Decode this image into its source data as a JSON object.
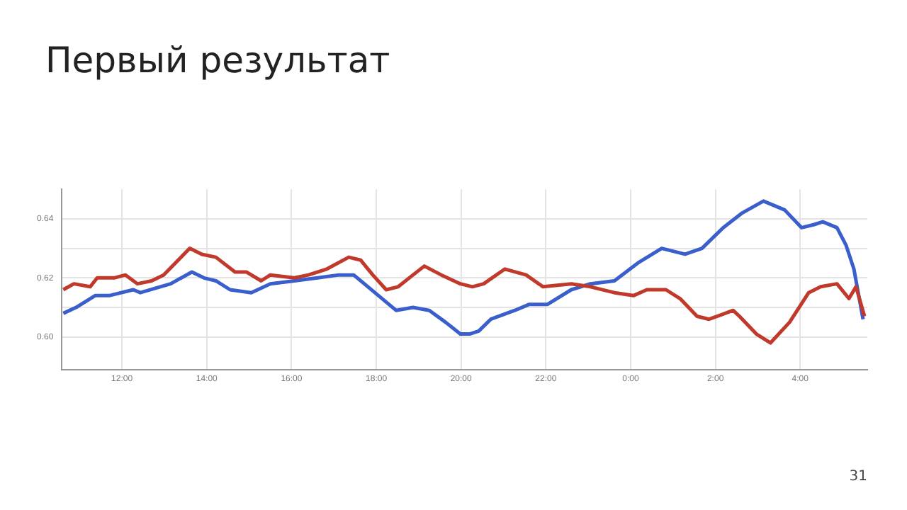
{
  "chart_data": {
    "type": "line",
    "title": "Первый результат",
    "annotations": [
      "31"
    ],
    "xlim": [
      "--01-01T10:35",
      "--01-02T05:35"
    ],
    "ylim": [
      0.589,
      0.65
    ],
    "xticks": [
      {
        "value": "--01-01T12:00",
        "label": "12:00"
      },
      {
        "value": "--01-01T14:00",
        "label": "14:00"
      },
      {
        "value": "--01-01T16:00",
        "label": "16:00"
      },
      {
        "value": "--01-01T18:00",
        "label": "18:00"
      },
      {
        "value": "--01-01T20:00",
        "label": "20:00"
      },
      {
        "value": "--01-01T22:00",
        "label": "22:00"
      },
      {
        "value": "--01-02T00:00",
        "label": "0:00"
      },
      {
        "value": "--01-02T02:00",
        "label": "2:00"
      },
      {
        "value": "--01-02T04:00",
        "label": "4:00"
      }
    ],
    "yticks": [
      {
        "value": 0.6,
        "label": "0.60"
      },
      {
        "value": 0.61,
        "label": null
      },
      {
        "value": 0.62,
        "label": "0.62"
      },
      {
        "value": 0.63,
        "label": null
      },
      {
        "value": 0.64,
        "label": "0.64"
      }
    ],
    "grid": true,
    "marker": "none",
    "line_style": "solid",
    "legend": false,
    "series": [
      {
        "color": "#c0392b",
        "x": [
          "--01-01T10:37",
          "--01-01T10:52",
          "--01-01T11:15",
          "--01-01T11:25",
          "--01-01T11:49",
          "--01-01T12:05",
          "--01-01T12:22",
          "--01-01T12:42",
          "--01-01T12:59",
          "--01-01T13:36",
          "--01-01T13:53",
          "--01-01T14:13",
          "--01-01T14:40",
          "--01-01T14:56",
          "--01-01T15:17",
          "--01-01T15:30",
          "--01-01T16:04",
          "--01-01T16:24",
          "--01-01T16:50",
          "--01-01T17:21",
          "--01-01T17:38",
          "--01-01T17:55",
          "--01-01T18:14",
          "--01-01T18:31",
          "--01-01T18:52",
          "--01-01T19:08",
          "--01-01T19:32",
          "--01-01T19:59",
          "--01-01T20:16",
          "--01-01T20:32",
          "--01-01T21:02",
          "--01-01T21:32",
          "--01-01T21:56",
          "--01-01T22:36",
          "--01-01T23:03",
          "--01-01T23:37",
          "--01-02T00:04",
          "--01-02T00:23",
          "--01-02T00:50",
          "--01-02T01:10",
          "--01-02T01:34",
          "--01-02T01:51",
          "--01-02T02:25",
          "--01-02T02:34",
          "--01-02T02:58",
          "--01-02T03:18",
          "--01-02T03:45",
          "--01-02T04:12",
          "--01-02T04:29",
          "--01-02T04:52",
          "--01-02T05:09",
          "--01-02T05:19",
          "--01-02T05:31"
        ],
        "values": [
          0.616,
          0.618,
          0.617,
          0.62,
          0.62,
          0.621,
          0.618,
          0.619,
          0.621,
          0.63,
          0.628,
          0.627,
          0.622,
          0.622,
          0.619,
          0.621,
          0.62,
          0.621,
          0.623,
          0.627,
          0.626,
          0.621,
          0.616,
          0.617,
          0.621,
          0.624,
          0.621,
          0.618,
          0.617,
          0.618,
          0.623,
          0.621,
          0.617,
          0.618,
          0.617,
          0.615,
          0.614,
          0.616,
          0.616,
          0.613,
          0.607,
          0.606,
          0.609,
          0.607,
          0.601,
          0.598,
          0.605,
          0.615,
          0.617,
          0.618,
          0.613,
          0.617,
          0.607
        ]
      },
      {
        "color": "#3a5fcd",
        "x": [
          "--01-01T10:37",
          "--01-01T10:55",
          "--01-01T11:22",
          "--01-01T11:42",
          "--01-01T12:16",
          "--01-01T12:26",
          "--01-01T13:09",
          "--01-01T13:39",
          "--01-01T13:56",
          "--01-01T14:13",
          "--01-01T14:33",
          "--01-01T15:03",
          "--01-01T15:30",
          "--01-01T16:04",
          "--01-01T16:37",
          "--01-01T17:07",
          "--01-01T17:28",
          "--01-01T17:58",
          "--01-01T18:28",
          "--01-01T18:52",
          "--01-01T19:15",
          "--01-01T19:38",
          "--01-01T19:59",
          "--01-01T20:12",
          "--01-01T20:25",
          "--01-01T20:42",
          "--01-01T21:16",
          "--01-01T21:36",
          "--01-01T22:02",
          "--01-01T22:36",
          "--01-01T23:03",
          "--01-01T23:37",
          "--01-02T00:10",
          "--01-02T00:44",
          "--01-02T01:17",
          "--01-02T01:41",
          "--01-02T02:11",
          "--01-02T02:38",
          "--01-02T03:08",
          "--01-02T03:38",
          "--01-02T04:02",
          "--01-02T04:19",
          "--01-02T04:32",
          "--01-02T04:52",
          "--01-02T05:05",
          "--01-02T05:16",
          "--01-02T05:29"
        ],
        "values": [
          0.608,
          0.61,
          0.614,
          0.614,
          0.616,
          0.615,
          0.618,
          0.622,
          0.62,
          0.619,
          0.616,
          0.615,
          0.618,
          0.619,
          0.62,
          0.621,
          0.621,
          0.615,
          0.609,
          0.61,
          0.609,
          0.605,
          0.601,
          0.601,
          0.602,
          0.606,
          0.609,
          0.611,
          0.611,
          0.616,
          0.618,
          0.619,
          0.625,
          0.63,
          0.628,
          0.63,
          0.637,
          0.642,
          0.646,
          0.643,
          0.637,
          0.638,
          0.639,
          0.637,
          0.631,
          0.623,
          0.606
        ]
      }
    ]
  }
}
